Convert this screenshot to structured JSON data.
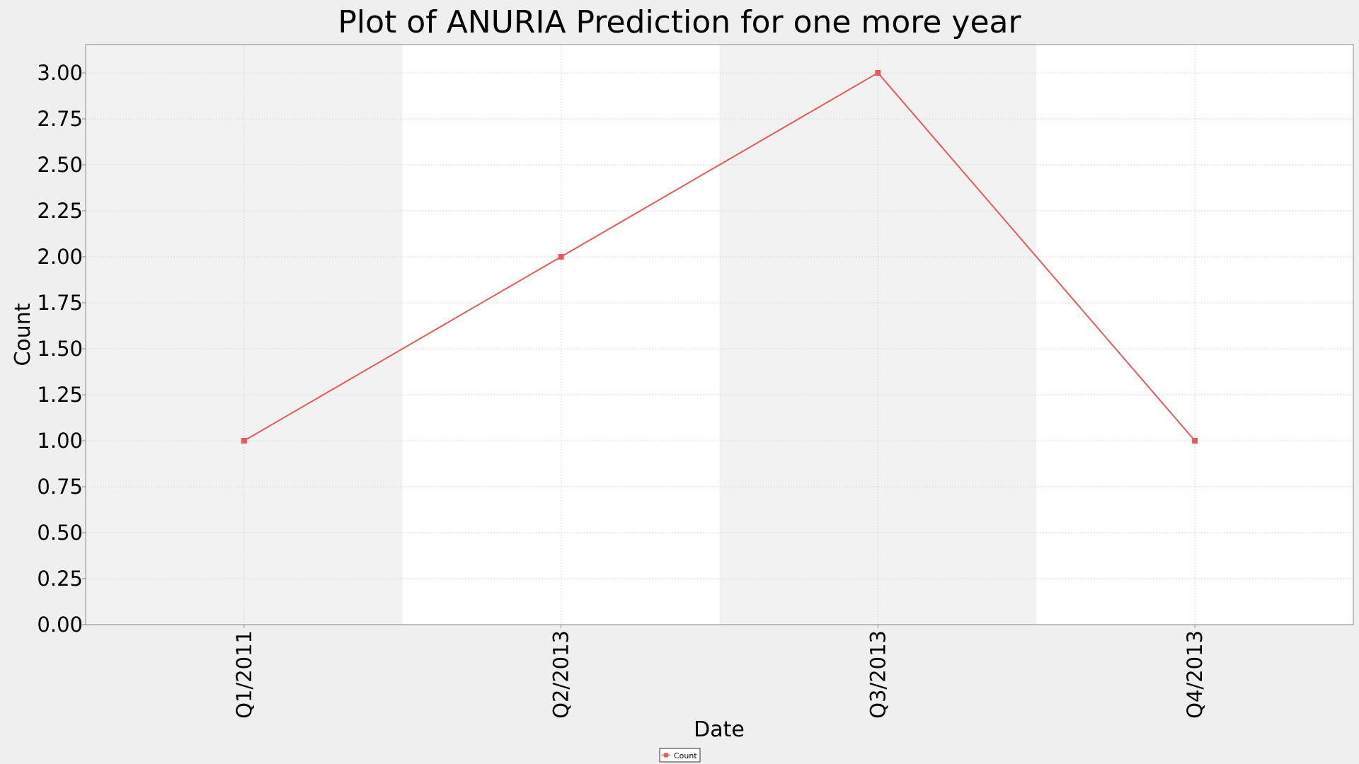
{
  "chart_data": {
    "type": "line",
    "title": "Plot of ANURIA Prediction for one more year",
    "xlabel": "Date",
    "ylabel": "Count",
    "categories": [
      "Q1/2011",
      "Q2/2013",
      "Q3/2013",
      "Q4/2013"
    ],
    "series": [
      {
        "name": "Count",
        "values": [
          1,
          2,
          3,
          1
        ],
        "color": "#e85a5a"
      }
    ],
    "ylim": [
      0,
      3.0
    ],
    "yticks": [
      "0.00",
      "0.25",
      "0.50",
      "0.75",
      "1.00",
      "1.25",
      "1.50",
      "1.75",
      "2.00",
      "2.25",
      "2.50",
      "2.75",
      "3.00"
    ],
    "grid": true,
    "legend_position": "bottom-center",
    "colors": {
      "page_background": "#efefef",
      "plot_band_shaded": "#f2f2f2",
      "plot_band_plain": "#ffffff",
      "gridline": "#d9d9d9",
      "axis": "#888888"
    }
  }
}
